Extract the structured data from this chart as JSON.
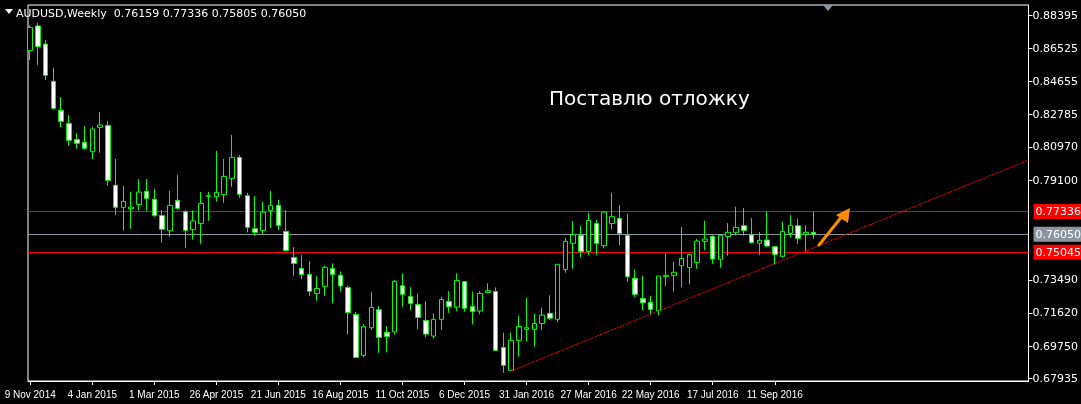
{
  "chart_data": {
    "type": "candlestick",
    "title": "AUDUSD,Weekly  0.76159 0.77336 0.75805 0.76050",
    "color": "#00ff00",
    "annotations": [
      "Поставлю отложку"
    ],
    "x": [
      "2014-11-09",
      "2014-11-16",
      "2014-11-23",
      "2014-11-30",
      "2014-12-07",
      "2014-12-14",
      "2014-12-21",
      "2014-12-28",
      "2015-01-04",
      "2015-01-11",
      "2015-01-18",
      "2015-01-25",
      "2015-02-01",
      "2015-02-08",
      "2015-02-15",
      "2015-02-22",
      "2015-03-01",
      "2015-03-08",
      "2015-03-15",
      "2015-03-22",
      "2015-03-29",
      "2015-04-05",
      "2015-04-12",
      "2015-04-19",
      "2015-04-26",
      "2015-05-03",
      "2015-05-10",
      "2015-05-17",
      "2015-05-24",
      "2015-05-31",
      "2015-06-07",
      "2015-06-14",
      "2015-06-21",
      "2015-06-28",
      "2015-07-05",
      "2015-07-12",
      "2015-07-19",
      "2015-07-26",
      "2015-08-02",
      "2015-08-09",
      "2015-08-16",
      "2015-08-23",
      "2015-08-30",
      "2015-09-06",
      "2015-09-13",
      "2015-09-20",
      "2015-09-27",
      "2015-10-04",
      "2015-10-11",
      "2015-10-18",
      "2015-10-25",
      "2015-11-01",
      "2015-11-08",
      "2015-11-15",
      "2015-11-22",
      "2015-11-29",
      "2015-12-06",
      "2015-12-13",
      "2015-12-20",
      "2015-12-27",
      "2016-01-03",
      "2016-01-10",
      "2016-01-17",
      "2016-01-24",
      "2016-01-31",
      "2016-02-07",
      "2016-02-14",
      "2016-02-21",
      "2016-02-28",
      "2016-03-06",
      "2016-03-13",
      "2016-03-20",
      "2016-03-27",
      "2016-04-03",
      "2016-04-10",
      "2016-04-17",
      "2016-04-24",
      "2016-05-01",
      "2016-05-08",
      "2016-05-15",
      "2016-05-22",
      "2016-05-29",
      "2016-06-05",
      "2016-06-12",
      "2016-06-19",
      "2016-06-26",
      "2016-07-03",
      "2016-07-10",
      "2016-07-17",
      "2016-07-24",
      "2016-07-31",
      "2016-08-07",
      "2016-08-14",
      "2016-08-21",
      "2016-08-28",
      "2016-09-04",
      "2016-09-11",
      "2016-09-18",
      "2016-09-25",
      "2016-10-02",
      "2016-10-09",
      "2016-10-16"
    ],
    "ohlc": [
      [
        0.8639,
        0.8783,
        0.8586,
        0.877
      ],
      [
        0.8778,
        0.8796,
        0.8558,
        0.8661
      ],
      [
        0.8676,
        0.8699,
        0.8474,
        0.85
      ],
      [
        0.8466,
        0.8541,
        0.8308,
        0.8314
      ],
      [
        0.8303,
        0.8378,
        0.8209,
        0.8241
      ],
      [
        0.8229,
        0.8276,
        0.8104,
        0.8134
      ],
      [
        0.8139,
        0.8175,
        0.8087,
        0.8117
      ],
      [
        0.8123,
        0.8214,
        0.8081,
        0.8089
      ],
      [
        0.807,
        0.8209,
        0.8029,
        0.8198
      ],
      [
        0.8207,
        0.8293,
        0.8064,
        0.822
      ],
      [
        0.8218,
        0.8243,
        0.7879,
        0.7909
      ],
      [
        0.7881,
        0.8029,
        0.7713,
        0.7757
      ],
      [
        0.7757,
        0.7877,
        0.7625,
        0.779
      ],
      [
        0.7749,
        0.7843,
        0.7636,
        0.7758
      ],
      [
        0.7773,
        0.7916,
        0.774,
        0.7843
      ],
      [
        0.7847,
        0.7916,
        0.7738,
        0.7807
      ],
      [
        0.7802,
        0.786,
        0.7704,
        0.7711
      ],
      [
        0.7711,
        0.7741,
        0.7558,
        0.7633
      ],
      [
        0.7625,
        0.7849,
        0.7591,
        0.7768
      ],
      [
        0.7796,
        0.7939,
        0.7745,
        0.7751
      ],
      [
        0.7732,
        0.7741,
        0.7529,
        0.7627
      ],
      [
        0.7631,
        0.774,
        0.7574,
        0.768
      ],
      [
        0.7666,
        0.7843,
        0.7552,
        0.7779
      ],
      [
        0.7818,
        0.7843,
        0.7681,
        0.7822
      ],
      [
        0.7817,
        0.8074,
        0.7788,
        0.7841
      ],
      [
        0.7828,
        0.8029,
        0.7783,
        0.7931
      ],
      [
        0.792,
        0.8164,
        0.7873,
        0.8038
      ],
      [
        0.8038,
        0.8051,
        0.7811,
        0.783
      ],
      [
        0.7822,
        0.7839,
        0.7616,
        0.7644
      ],
      [
        0.7636,
        0.782,
        0.7597,
        0.7616
      ],
      [
        0.7627,
        0.779,
        0.7605,
        0.773
      ],
      [
        0.7738,
        0.7849,
        0.764,
        0.7768
      ],
      [
        0.7768,
        0.7798,
        0.7629,
        0.7655
      ],
      [
        0.7621,
        0.7741,
        0.7507,
        0.7514
      ],
      [
        0.7475,
        0.7533,
        0.7372,
        0.7441
      ],
      [
        0.7413,
        0.7488,
        0.7351,
        0.7379
      ],
      [
        0.7379,
        0.7454,
        0.7259,
        0.7284
      ],
      [
        0.7272,
        0.737,
        0.7231,
        0.73
      ],
      [
        0.7312,
        0.7428,
        0.7259,
        0.7419
      ],
      [
        0.7413,
        0.7441,
        0.7216,
        0.7379
      ],
      [
        0.7374,
        0.7396,
        0.7285,
        0.7314
      ],
      [
        0.7306,
        0.7317,
        0.7041,
        0.7165
      ],
      [
        0.7154,
        0.7167,
        0.6912,
        0.6912
      ],
      [
        0.6923,
        0.71,
        0.6912,
        0.7085
      ],
      [
        0.7079,
        0.728,
        0.7066,
        0.7193
      ],
      [
        0.718,
        0.7201,
        0.6938,
        0.7024
      ],
      [
        0.7053,
        0.7088,
        0.694,
        0.703
      ],
      [
        0.7056,
        0.7347,
        0.7041,
        0.734
      ],
      [
        0.7315,
        0.7385,
        0.7197,
        0.7267
      ],
      [
        0.7255,
        0.7308,
        0.7178,
        0.7216
      ],
      [
        0.721,
        0.7272,
        0.707,
        0.7137
      ],
      [
        0.712,
        0.7229,
        0.7024,
        0.7043
      ],
      [
        0.7032,
        0.716,
        0.7019,
        0.7126
      ],
      [
        0.7126,
        0.7253,
        0.7066,
        0.7238
      ],
      [
        0.7227,
        0.7285,
        0.7163,
        0.7197
      ],
      [
        0.7195,
        0.7385,
        0.7171,
        0.7345
      ],
      [
        0.7338,
        0.7342,
        0.7169,
        0.7188
      ],
      [
        0.7199,
        0.7282,
        0.7098,
        0.7171
      ],
      [
        0.7173,
        0.7285,
        0.7154,
        0.7272
      ],
      [
        0.7278,
        0.7329,
        0.7272,
        0.7287
      ],
      [
        0.7283,
        0.7306,
        0.6951,
        0.6951
      ],
      [
        0.6968,
        0.7051,
        0.6825,
        0.6867
      ],
      [
        0.6839,
        0.7051,
        0.6835,
        0.7008
      ],
      [
        0.7008,
        0.7145,
        0.6916,
        0.7086
      ],
      [
        0.707,
        0.7248,
        0.7002,
        0.7079
      ],
      [
        0.707,
        0.7156,
        0.6972,
        0.7103
      ],
      [
        0.7103,
        0.7192,
        0.7066,
        0.715
      ],
      [
        0.716,
        0.7261,
        0.7122,
        0.7133
      ],
      [
        0.7126,
        0.7437,
        0.7109,
        0.7436
      ],
      [
        0.7407,
        0.7584,
        0.7389,
        0.7565
      ],
      [
        0.7554,
        0.768,
        0.7411,
        0.7603
      ],
      [
        0.7599,
        0.7651,
        0.7475,
        0.7507
      ],
      [
        0.7509,
        0.7727,
        0.7486,
        0.7683
      ],
      [
        0.7666,
        0.7685,
        0.7488,
        0.7554
      ],
      [
        0.7541,
        0.7734,
        0.7526,
        0.773
      ],
      [
        0.7666,
        0.7839,
        0.7633,
        0.7704
      ],
      [
        0.7695,
        0.777,
        0.7544,
        0.761
      ],
      [
        0.7599,
        0.7721,
        0.7338,
        0.7366
      ],
      [
        0.7357,
        0.7407,
        0.7253,
        0.7267
      ],
      [
        0.7244,
        0.7372,
        0.7178,
        0.722
      ],
      [
        0.7222,
        0.7259,
        0.715,
        0.7182
      ],
      [
        0.7175,
        0.737,
        0.715,
        0.737
      ],
      [
        0.7368,
        0.7497,
        0.7314,
        0.7374
      ],
      [
        0.7374,
        0.7449,
        0.7283,
        0.7391
      ],
      [
        0.7428,
        0.7646,
        0.7306,
        0.7469
      ],
      [
        0.7417,
        0.7497,
        0.7323,
        0.7492
      ],
      [
        0.7445,
        0.7578,
        0.7411,
        0.7567
      ],
      [
        0.7565,
        0.7681,
        0.7516,
        0.7578
      ],
      [
        0.7593,
        0.7599,
        0.7439,
        0.7466
      ],
      [
        0.7464,
        0.7604,
        0.7417,
        0.7599
      ],
      [
        0.7593,
        0.7668,
        0.7484,
        0.7616
      ],
      [
        0.7616,
        0.776,
        0.7597,
        0.7644
      ],
      [
        0.7653,
        0.7753,
        0.7597,
        0.7627
      ],
      [
        0.7601,
        0.7696,
        0.7552,
        0.7558
      ],
      [
        0.7554,
        0.7618,
        0.7488,
        0.7571
      ],
      [
        0.7573,
        0.7732,
        0.7535,
        0.7539
      ],
      [
        0.7535,
        0.7535,
        0.7436,
        0.7492
      ],
      [
        0.7481,
        0.7676,
        0.7473,
        0.7621
      ],
      [
        0.761,
        0.7713,
        0.7586,
        0.7655
      ],
      [
        0.7653,
        0.7691,
        0.7552,
        0.7582
      ],
      [
        0.7605,
        0.7655,
        0.7507,
        0.7616
      ],
      [
        0.76159,
        0.77336,
        0.75805,
        0.7605
      ]
    ],
    "series": [
      {
        "type": "line",
        "color": "#ff0000",
        "x": [
          "2016-01-17",
          "2017-04-28"
        ],
        "values": [
          0.6835,
          0.8023
        ],
        "line_style": "dotted",
        "marker": "none"
      }
    ],
    "ref_lines": [
      {
        "axis": "y",
        "value": 0.77336,
        "label": "0.77336",
        "color": "#ff0000"
      },
      {
        "axis": "y",
        "value": 0.7605,
        "label": "0.76050",
        "color": "#8c96a0"
      },
      {
        "axis": "y",
        "value": 0.75045,
        "label": "0.75045",
        "color": "#ff0000"
      }
    ],
    "xlim": [
      "2014-11-07",
      "2017-04-28"
    ],
    "xticks": [
      {
        "value": "2014-11-09",
        "label": "9 Nov 2014"
      },
      {
        "value": "2015-01-04",
        "label": "4 Jan 2015"
      },
      {
        "value": "2015-03-01",
        "label": "1 Mar 2015"
      },
      {
        "value": "2015-04-26",
        "label": "26 Apr 2015"
      },
      {
        "value": "2015-06-21",
        "label": "21 Jun 2015"
      },
      {
        "value": "2015-08-16",
        "label": "16 Aug 2015"
      },
      {
        "value": "2015-10-11",
        "label": "11 Oct 2015"
      },
      {
        "value": "2015-12-06",
        "label": "6 Dec 2015"
      },
      {
        "value": "2016-01-31",
        "label": "31 Jan 2016"
      },
      {
        "value": "2016-03-27",
        "label": "27 Mar 2016"
      },
      {
        "value": "2016-05-22",
        "label": "22 May 2016"
      },
      {
        "value": "2016-07-17",
        "label": "17 Jul 2016"
      },
      {
        "value": "2016-09-11",
        "label": "11 Sep 2016"
      }
    ],
    "ylim": [
      0.6779,
      0.8896
    ],
    "yticks": [
      0.88395,
      0.86525,
      0.84655,
      0.82785,
      {
        "value": 0.8097,
        "label": "0.80970"
      },
      {
        "value": 0.791,
        "label": "0.79100"
      },
      {
        "value": 0.7349,
        "label": "0.73490"
      },
      {
        "value": 0.7162,
        "label": "0.71620"
      },
      {
        "value": 0.6975,
        "label": "0.69750"
      },
      0.67935
    ]
  }
}
